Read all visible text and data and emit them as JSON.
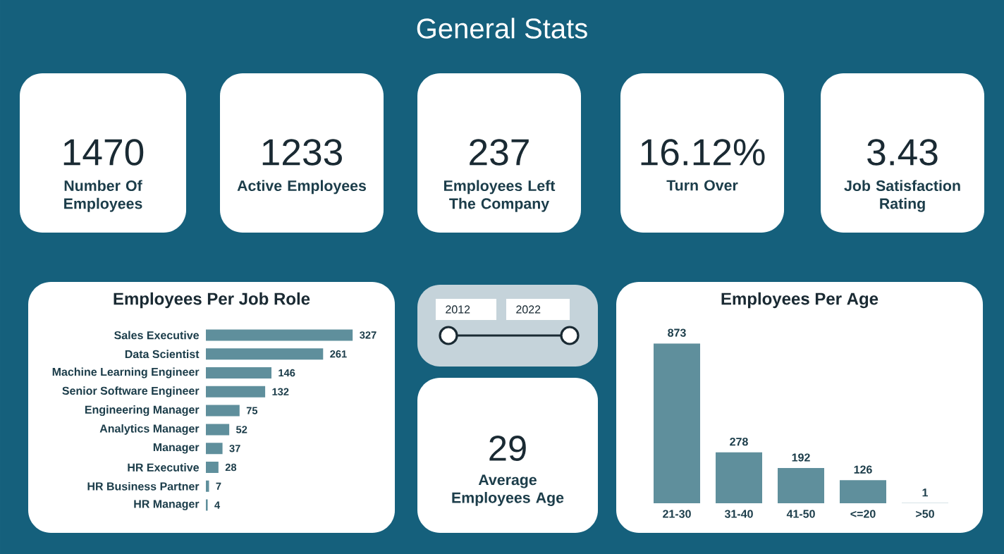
{
  "chart_data": [
    {
      "type": "other",
      "title": "General Stats",
      "annotations": [
        "1470",
        "Number Of Employees",
        "1233",
        "Active Employees",
        "237",
        "Employees Left The Company",
        "16.12%",
        "Turn Over",
        "3.43",
        "Job Satisfaction Rating"
      ]
    },
    {
      "type": "bar",
      "orientation": "horizontal",
      "title": "Employees Per Job Role",
      "categories": [
        "Sales Executive",
        "Data Scientist",
        "Machine Learning Engineer",
        "Senior Software Engineer",
        "Engineering Manager",
        "Analytics Manager",
        "Manager",
        "HR Executive",
        "HR Business Partner",
        "HR Manager"
      ],
      "values": [
        327,
        261,
        146,
        132,
        75,
        52,
        37,
        28,
        7,
        4
      ],
      "color": "#5f8f9c",
      "data_labels": true,
      "tick_labels": "y"
    },
    {
      "type": "other",
      "annotations": [
        "2012",
        "2022",
        "29",
        "Average Employees Age"
      ]
    },
    {
      "type": "bar",
      "title": "Employees Per Age",
      "categories": [
        "21-30",
        "31-40",
        "41-50",
        "<=20",
        ">50"
      ],
      "values": [
        873,
        278,
        192,
        126,
        1
      ],
      "color": "#5f8f9c",
      "data_labels": true,
      "tick_labels": "x"
    }
  ]
}
